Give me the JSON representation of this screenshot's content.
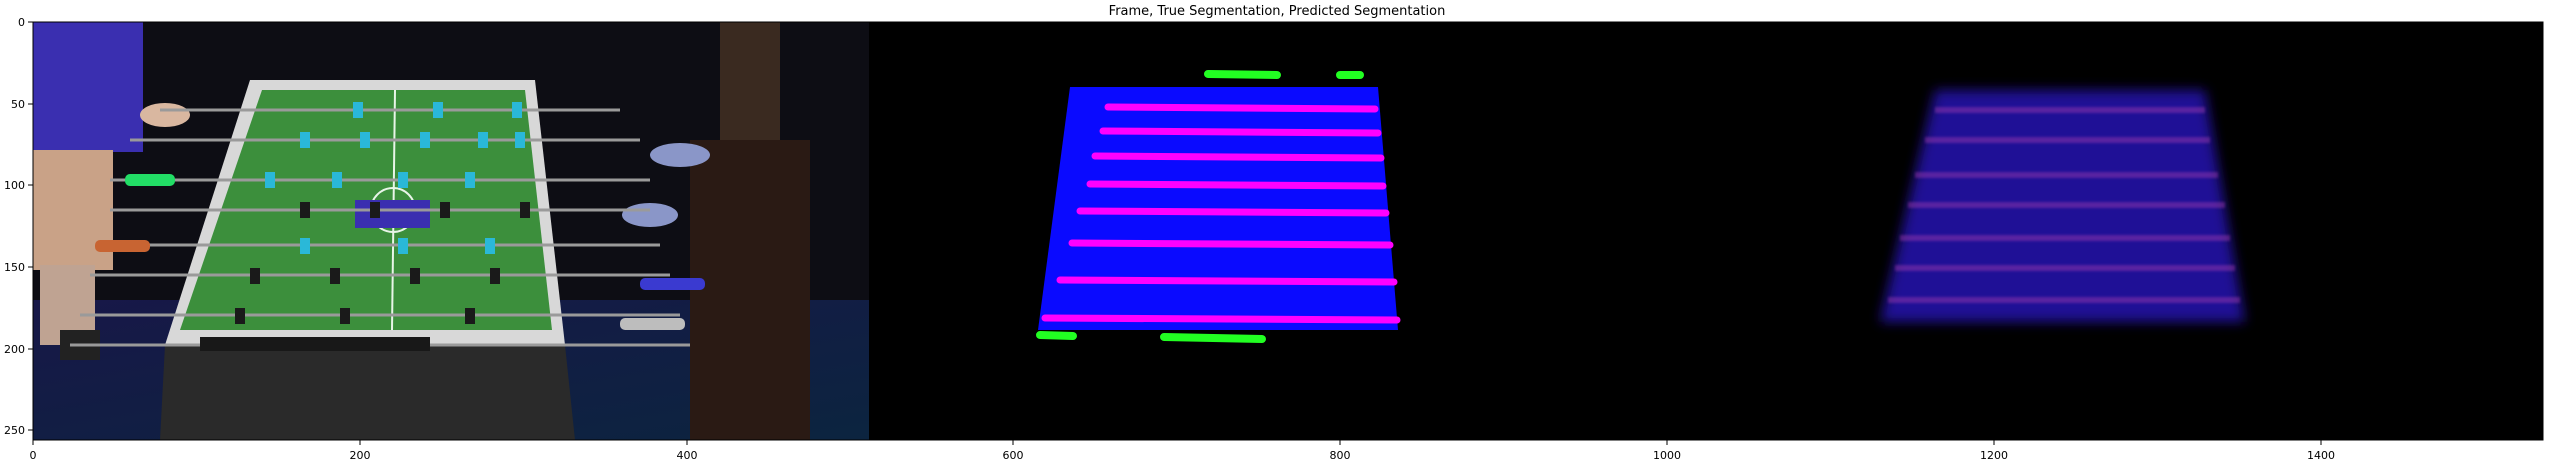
{
  "figure": {
    "title": "Frame, True Segmentation, Predicted Segmentation",
    "panels": [
      "Frame",
      "True Segmentation",
      "Predicted Segmentation"
    ],
    "x_ticks": [
      "0",
      "200",
      "400",
      "600",
      "800",
      "1000",
      "1200",
      "1400"
    ],
    "y_ticks": [
      "0",
      "50",
      "100",
      "150",
      "200",
      "250"
    ],
    "x_range": [
      0,
      1536
    ],
    "y_range": [
      0,
      256
    ]
  },
  "colors": {
    "background": "#ffffff",
    "panel_bg": "#000000",
    "table_blue": "#0a0aff",
    "rod_magenta": "#ff00ff",
    "goalie_green": "#22ff22",
    "field_green": "#3c8f3c",
    "player_cyan": "#2ab8d8",
    "jersey_purple": "#3a2fb0",
    "skin_tone": "#d9b7a0"
  }
}
